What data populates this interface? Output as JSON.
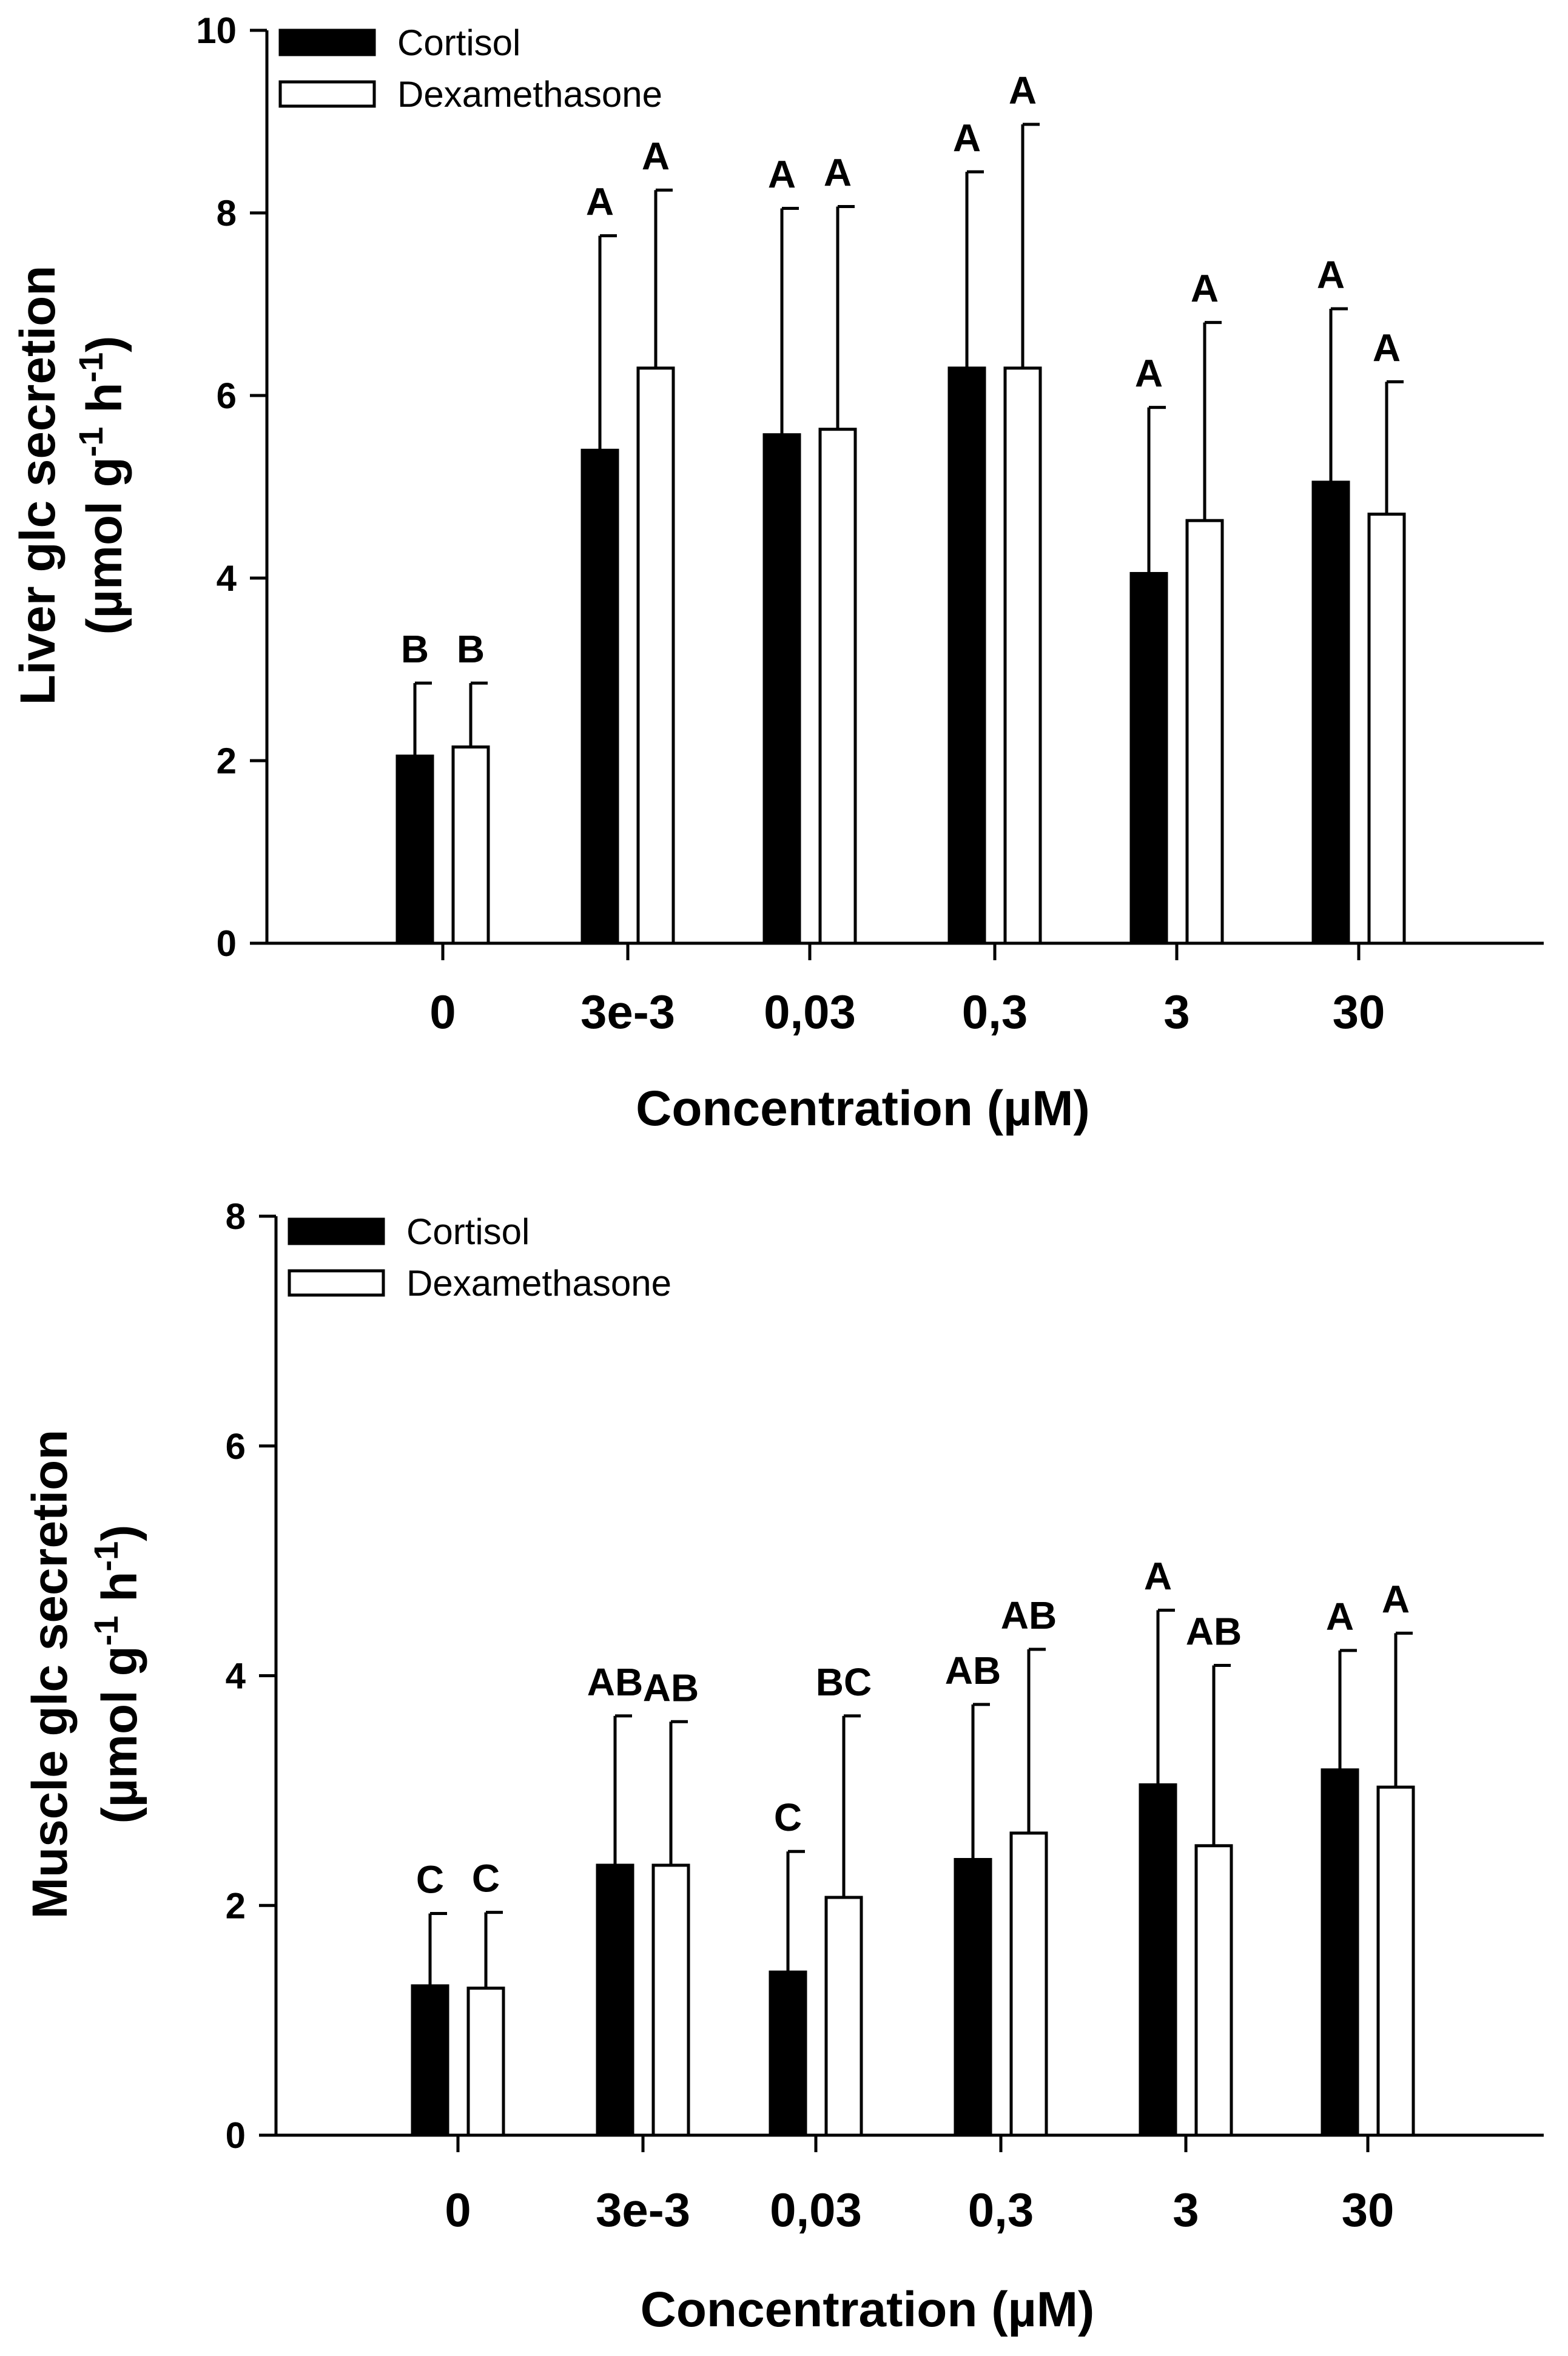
{
  "chart_data": [
    {
      "type": "bar",
      "categories": [
        "0",
        "3e-3",
        "0,03",
        "0,3",
        "3",
        "30"
      ],
      "xlabel": "Concentration (µM)",
      "ylabel_line1": "Liver glc secretion",
      "ylabel_line2": "(µmol g-1 h-1)",
      "ylim": [
        0,
        10
      ],
      "yticks": [
        0,
        2,
        4,
        6,
        8,
        10
      ],
      "legend_position": "top-left",
      "grid": false,
      "series": [
        {
          "name": "Cortisol",
          "color": "#000000",
          "values": [
            2.05,
            5.4,
            5.57,
            6.3,
            4.05,
            5.05
          ],
          "error_upper": [
            2.85,
            7.75,
            8.05,
            8.45,
            5.87,
            6.95
          ],
          "significance": [
            "B",
            "A",
            "A",
            "A",
            "A",
            "A"
          ]
        },
        {
          "name": "Dexamethasone",
          "color": "#ffffff",
          "values": [
            2.15,
            6.3,
            5.63,
            6.3,
            4.63,
            4.7
          ],
          "error_upper": [
            2.85,
            8.25,
            8.07,
            8.97,
            6.8,
            6.15
          ],
          "significance": [
            "B",
            "A",
            "A",
            "A",
            "A",
            "A"
          ]
        }
      ]
    },
    {
      "type": "bar",
      "categories": [
        "0",
        "3e-3",
        "0,03",
        "0,3",
        "3",
        "30"
      ],
      "xlabel": "Concentration (µM)",
      "ylabel_line1": "Muscle glc secretion",
      "ylabel_line2": "(µmol g-1 h-1)",
      "ylim": [
        0,
        8
      ],
      "yticks": [
        0,
        2,
        4,
        6,
        8
      ],
      "legend_position": "top-left",
      "grid": false,
      "series": [
        {
          "name": "Cortisol",
          "color": "#000000",
          "values": [
            1.3,
            2.35,
            1.42,
            2.4,
            3.05,
            3.18
          ],
          "error_upper": [
            1.93,
            3.65,
            2.47,
            3.75,
            4.57,
            4.22
          ],
          "significance": [
            "C",
            "AB",
            "C",
            "AB",
            "A",
            "A"
          ]
        },
        {
          "name": "Dexamethasone",
          "color": "#ffffff",
          "values": [
            1.28,
            2.35,
            2.07,
            2.63,
            2.52,
            3.03
          ],
          "error_upper": [
            1.94,
            3.6,
            3.65,
            4.23,
            4.09,
            4.37
          ],
          "significance": [
            "C",
            "AB",
            "BC",
            "AB",
            "AB",
            "A"
          ]
        }
      ]
    }
  ]
}
